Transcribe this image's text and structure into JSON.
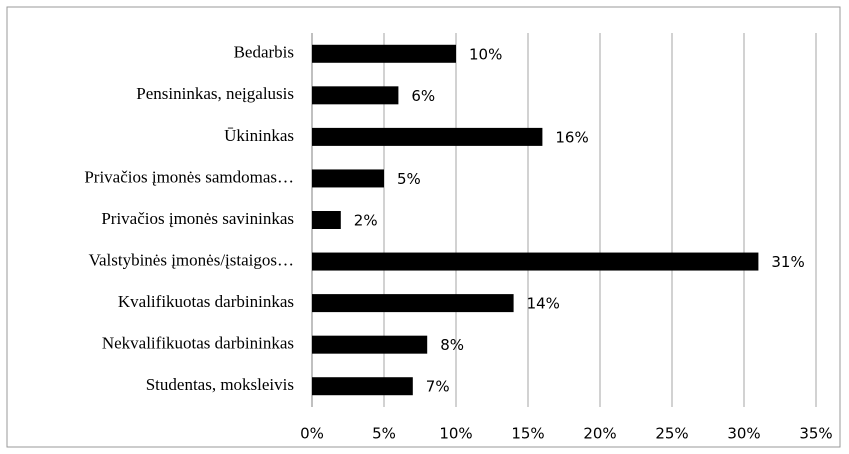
{
  "chart_data": {
    "type": "bar",
    "orientation": "horizontal",
    "categories": [
      "Bedarbis",
      "Pensininkas, neįgalusis",
      "Ūkininkas",
      "Privačios įmonės samdomas…",
      "Privačios įmonės savininkas",
      "Valstybinės įmonės/įstaigos…",
      "Kvalifikuotas darbininkas",
      "Nekvalifikuotas darbininkas",
      "Studentas, moksleivis"
    ],
    "values": [
      10,
      6,
      16,
      5,
      2,
      31,
      14,
      8,
      7
    ],
    "value_labels": [
      "10%",
      "6%",
      "16%",
      "5%",
      "2%",
      "31%",
      "14%",
      "8%",
      "7%"
    ],
    "color": "#000000",
    "xlim": [
      0,
      35
    ],
    "xticks": [
      {
        "value": 0,
        "label": "0%"
      },
      {
        "value": 5,
        "label": "5%"
      },
      {
        "value": 10,
        "label": "10%"
      },
      {
        "value": 15,
        "label": "15%"
      },
      {
        "value": 20,
        "label": "20%"
      },
      {
        "value": 25,
        "label": "25%"
      },
      {
        "value": 30,
        "label": "30%"
      },
      {
        "value": 35,
        "label": "35%"
      }
    ],
    "grid": true
  }
}
